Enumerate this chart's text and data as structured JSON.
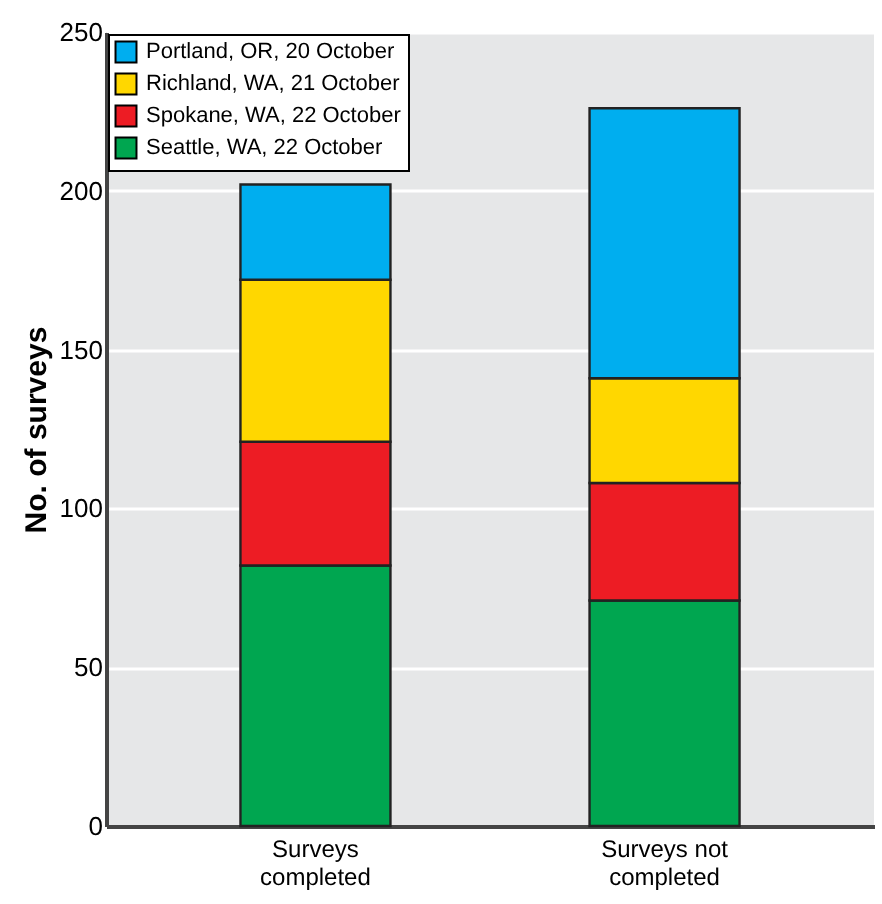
{
  "chart_data": {
    "type": "bar",
    "stacked": true,
    "ylabel": "No. of surveys",
    "categories": [
      "Surveys completed",
      "Surveys not completed"
    ],
    "series": [
      {
        "name": "Seattle, WA, 22 October",
        "color": "#00a650",
        "values": [
          82,
          71
        ]
      },
      {
        "name": "Spokane, WA, 22 October",
        "color": "#ed1c24",
        "values": [
          39,
          37
        ]
      },
      {
        "name": "Richland, WA, 21 October",
        "color": "#ffd700",
        "values": [
          51,
          33
        ]
      },
      {
        "name": "Portland, OR, 20 October",
        "color": "#00aeef",
        "values": [
          30,
          85
        ]
      }
    ],
    "ylim": [
      0,
      250
    ],
    "yticks": [
      0,
      50,
      100,
      150,
      200,
      250
    ],
    "grid": "y",
    "legend": "top left"
  }
}
